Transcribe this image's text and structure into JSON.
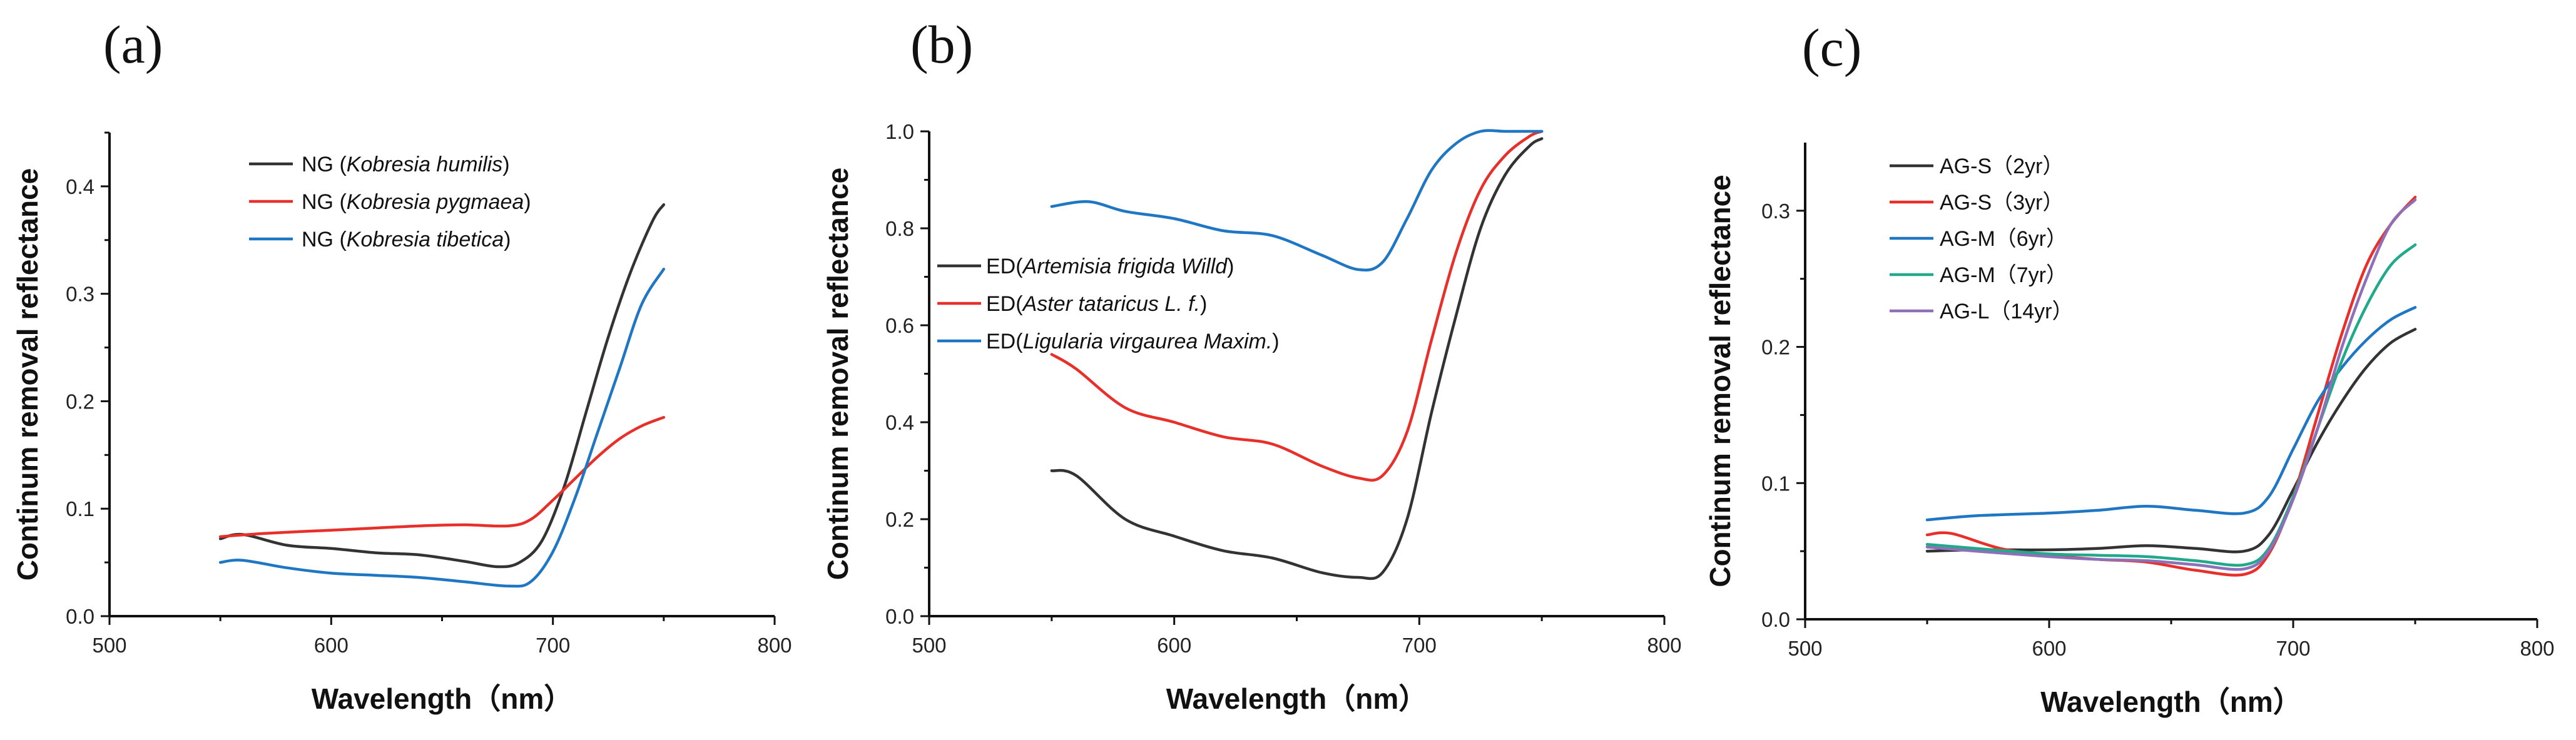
{
  "chart_data": [
    {
      "type": "line",
      "panel": "(a)",
      "xlabel": "Wavelength（nm）",
      "ylabel": "Continum removal reflectance",
      "xlim": [
        500,
        800
      ],
      "ylim": [
        0,
        0.45
      ],
      "xticks": [
        500,
        600,
        700,
        800
      ],
      "xtick_labels": [
        "500",
        "600",
        "700",
        "800"
      ],
      "yticks": [
        0,
        0.1,
        0.2,
        0.3,
        0.4
      ],
      "ytick_labels": [
        "0.0",
        "0.1",
        "0.2",
        "0.3",
        "0.4"
      ],
      "legend_position": "top-left",
      "series": [
        {
          "prefix": "NG (",
          "name": "Kobresia humilis",
          "suffix": ")",
          "color": "#333333",
          "x": [
            550,
            560,
            580,
            600,
            620,
            640,
            660,
            675,
            685,
            695,
            705,
            715,
            725,
            735,
            745,
            750
          ],
          "y": [
            0.072,
            0.076,
            0.066,
            0.063,
            0.059,
            0.057,
            0.051,
            0.046,
            0.05,
            0.07,
            0.12,
            0.19,
            0.26,
            0.32,
            0.368,
            0.383
          ]
        },
        {
          "prefix": "NG (",
          "name": "Kobresia pygmaea",
          "suffix": ")",
          "color": "#e8302a",
          "x": [
            550,
            570,
            600,
            620,
            640,
            660,
            680,
            690,
            700,
            710,
            720,
            730,
            740,
            750
          ],
          "y": [
            0.074,
            0.077,
            0.08,
            0.082,
            0.084,
            0.085,
            0.084,
            0.09,
            0.108,
            0.128,
            0.148,
            0.165,
            0.177,
            0.185
          ]
        },
        {
          "prefix": "NG (",
          "name": "Kobresia tibetica",
          "suffix": ")",
          "color": "#1f77c4",
          "x": [
            550,
            560,
            580,
            600,
            620,
            640,
            660,
            680,
            690,
            700,
            710,
            720,
            730,
            740,
            750
          ],
          "y": [
            0.05,
            0.052,
            0.045,
            0.04,
            0.038,
            0.036,
            0.032,
            0.028,
            0.032,
            0.06,
            0.11,
            0.17,
            0.23,
            0.29,
            0.323
          ]
        }
      ]
    },
    {
      "type": "line",
      "panel": "(b)",
      "xlabel": "Wavelength（nm）",
      "ylabel": "Continum removal reflectance",
      "xlim": [
        500,
        800
      ],
      "ylim": [
        0,
        1.0
      ],
      "xticks": [
        500,
        600,
        700,
        800
      ],
      "xtick_labels": [
        "500",
        "600",
        "700",
        "800"
      ],
      "yticks": [
        0,
        0.2,
        0.4,
        0.6,
        0.8,
        1.0
      ],
      "ytick_labels": [
        "0.0",
        "0.2",
        "0.4",
        "0.6",
        "0.8",
        "1.0"
      ],
      "legend_position": "center-left",
      "series": [
        {
          "prefix": "ED(",
          "name": "Artemisia frigida Willd",
          "suffix": ")",
          "color": "#333333",
          "x": [
            550,
            560,
            580,
            600,
            620,
            640,
            660,
            675,
            685,
            695,
            705,
            715,
            725,
            735,
            745,
            750
          ],
          "y": [
            0.3,
            0.29,
            0.2,
            0.165,
            0.135,
            0.12,
            0.09,
            0.08,
            0.09,
            0.2,
            0.42,
            0.62,
            0.8,
            0.91,
            0.97,
            0.985
          ]
        },
        {
          "prefix": "ED(",
          "name": "Aster tataricus L. f.",
          "suffix": ")",
          "color": "#e8302a",
          "x": [
            550,
            560,
            580,
            600,
            620,
            640,
            660,
            675,
            685,
            695,
            705,
            715,
            725,
            735,
            745,
            750
          ],
          "y": [
            0.54,
            0.51,
            0.43,
            0.4,
            0.37,
            0.355,
            0.31,
            0.285,
            0.29,
            0.38,
            0.57,
            0.75,
            0.88,
            0.95,
            0.99,
            1.0
          ]
        },
        {
          "prefix": "ED(",
          "name": "Ligularia virgaurea Maxim.",
          "suffix": ")",
          "color": "#1f77c4",
          "x": [
            550,
            565,
            580,
            600,
            620,
            640,
            660,
            675,
            685,
            695,
            705,
            715,
            725,
            735,
            745,
            750
          ],
          "y": [
            0.845,
            0.855,
            0.835,
            0.82,
            0.795,
            0.785,
            0.745,
            0.715,
            0.73,
            0.82,
            0.92,
            0.975,
            1.0,
            1.0,
            1.0,
            1.0
          ]
        }
      ]
    },
    {
      "type": "line",
      "panel": "(c)",
      "xlabel": "Wavelength（nm）",
      "ylabel": "Continum removal reflectance",
      "xlim": [
        500,
        800
      ],
      "ylim": [
        0,
        0.35
      ],
      "xticks": [
        500,
        600,
        700,
        800
      ],
      "xtick_labels": [
        "500",
        "600",
        "700",
        "800"
      ],
      "yticks": [
        0,
        0.1,
        0.2,
        0.3
      ],
      "ytick_labels": [
        "0.0",
        "0.1",
        "0.2",
        "0.3"
      ],
      "legend_position": "top-left",
      "series": [
        {
          "name": "AG-S（2yr）",
          "color": "#333333",
          "x": [
            550,
            570,
            600,
            620,
            640,
            660,
            680,
            690,
            700,
            710,
            720,
            730,
            740,
            750
          ],
          "y": [
            0.05,
            0.051,
            0.051,
            0.052,
            0.054,
            0.052,
            0.05,
            0.062,
            0.095,
            0.13,
            0.16,
            0.185,
            0.203,
            0.213
          ]
        },
        {
          "name": "AG-S（3yr）",
          "color": "#e8302a",
          "x": [
            550,
            560,
            580,
            600,
            620,
            640,
            660,
            680,
            690,
            700,
            710,
            720,
            730,
            740,
            750
          ],
          "y": [
            0.062,
            0.063,
            0.052,
            0.047,
            0.044,
            0.042,
            0.036,
            0.033,
            0.048,
            0.09,
            0.15,
            0.21,
            0.26,
            0.29,
            0.31
          ]
        },
        {
          "name": "AG-M（6yr）",
          "color": "#1f77c4",
          "x": [
            550,
            570,
            600,
            620,
            640,
            660,
            680,
            690,
            700,
            710,
            720,
            730,
            740,
            750
          ],
          "y": [
            0.073,
            0.076,
            0.078,
            0.08,
            0.083,
            0.08,
            0.078,
            0.09,
            0.125,
            0.16,
            0.185,
            0.205,
            0.22,
            0.229
          ]
        },
        {
          "name": "AG-M（7yr）",
          "color": "#20a98a",
          "x": [
            550,
            570,
            600,
            620,
            640,
            660,
            680,
            690,
            700,
            710,
            720,
            730,
            740,
            750
          ],
          "y": [
            0.055,
            0.052,
            0.048,
            0.047,
            0.046,
            0.043,
            0.04,
            0.052,
            0.09,
            0.14,
            0.19,
            0.23,
            0.26,
            0.275
          ]
        },
        {
          "name": "AG-L（14yr）",
          "color": "#8e6fb8",
          "x": [
            550,
            570,
            600,
            620,
            640,
            660,
            680,
            690,
            700,
            710,
            720,
            730,
            740,
            750
          ],
          "y": [
            0.053,
            0.05,
            0.046,
            0.044,
            0.043,
            0.04,
            0.037,
            0.05,
            0.088,
            0.14,
            0.2,
            0.25,
            0.29,
            0.308
          ]
        }
      ]
    }
  ]
}
